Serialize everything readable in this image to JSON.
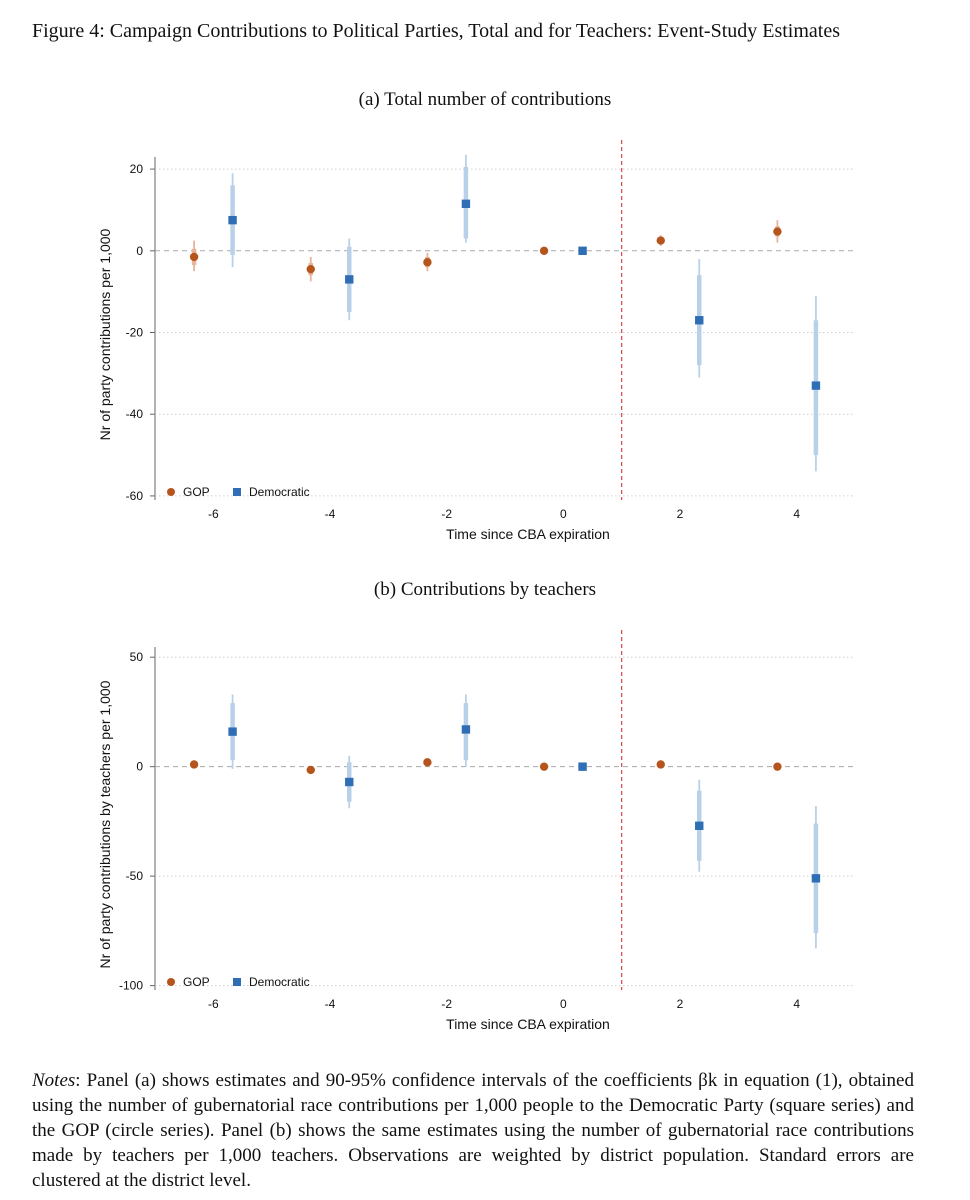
{
  "figure_title": "Figure 4: Campaign Contributions to Political Parties, Total and for Teachers: Event-Study Estimates",
  "notes": {
    "lead": "Notes",
    "text": ": Panel (a) shows estimates and 90-95% confidence intervals of the coefficients βk in equation (1), obtained using the number of gubernatorial race contributions per 1,000 people to the Democratic Party (square series) and the GOP (circle series). Panel (b) shows the same estimates using the number of gubernatorial race contributions made by teachers per 1,000 teachers. Observations are weighted by district population. Standard errors are clustered at the district level."
  },
  "colors": {
    "gop": "#b5551d",
    "gop_ci": "#e8b49a",
    "dem": "#2f6db5",
    "dem_ci": "#b9d1e8",
    "event_line": "#d9454a",
    "grid": "#cfcfcf"
  },
  "chart_data": [
    {
      "type": "scatter",
      "panel": "a",
      "title": "(a) Total number of contributions",
      "xlabel": "Time since CBA expiration",
      "ylabel": "Nr of party contributions per 1,000",
      "xlim": [
        -7,
        5
      ],
      "ylim": [
        -61,
        21
      ],
      "xticks": [
        -6,
        -4,
        -2,
        0,
        2,
        4
      ],
      "yticks": [
        20,
        0,
        -20,
        -40,
        -60
      ],
      "event_line_x": 1,
      "legend_position": "bottom-left",
      "grid": true,
      "series": [
        {
          "name": "GOP",
          "marker": "circle",
          "points": [
            {
              "x": -6,
              "y": -1.5,
              "ci90": [
                -3.5,
                0.5
              ],
              "ci95": [
                -5,
                2.5
              ]
            },
            {
              "x": -4,
              "y": -4.5,
              "ci90": [
                -6,
                -3
              ],
              "ci95": [
                -7.5,
                -1.5
              ]
            },
            {
              "x": -2,
              "y": -2.8,
              "ci90": [
                -4,
                -1.5
              ],
              "ci95": [
                -5,
                -0.5
              ]
            },
            {
              "x": 0,
              "y": 0,
              "ci90": [
                0,
                0
              ],
              "ci95": [
                0,
                0
              ]
            },
            {
              "x": 2,
              "y": 2.5,
              "ci90": [
                1.8,
                3.2
              ],
              "ci95": [
                1.2,
                3.8
              ]
            },
            {
              "x": 4,
              "y": 4.7,
              "ci90": [
                3.5,
                6
              ],
              "ci95": [
                2,
                7.5
              ]
            }
          ]
        },
        {
          "name": "Democratic",
          "marker": "square",
          "points": [
            {
              "x": -6,
              "y": 7.5,
              "ci90": [
                -1,
                16
              ],
              "ci95": [
                -4,
                19
              ]
            },
            {
              "x": -4,
              "y": -7,
              "ci90": [
                -15,
                1
              ],
              "ci95": [
                -17,
                3
              ]
            },
            {
              "x": -2,
              "y": 11.5,
              "ci90": [
                3,
                20.5
              ],
              "ci95": [
                2,
                23.5
              ]
            },
            {
              "x": 0,
              "y": 0,
              "ci90": [
                0,
                0
              ],
              "ci95": [
                0,
                0
              ]
            },
            {
              "x": 2,
              "y": -17,
              "ci90": [
                -28,
                -6
              ],
              "ci95": [
                -31,
                -2
              ]
            },
            {
              "x": 4,
              "y": -33,
              "ci90": [
                -50,
                -17
              ],
              "ci95": [
                -54,
                -11
              ]
            }
          ]
        }
      ]
    },
    {
      "type": "scatter",
      "panel": "b",
      "title": "(b) Contributions by teachers",
      "xlabel": "Time since CBA expiration",
      "ylabel": "Nr of party contributions by teachers per 1,000",
      "xlim": [
        -7,
        5
      ],
      "ylim": [
        -102,
        51
      ],
      "xticks": [
        -6,
        -4,
        -2,
        0,
        2,
        4
      ],
      "yticks": [
        50,
        0,
        -50,
        -100
      ],
      "event_line_x": 1,
      "legend_position": "bottom-left",
      "grid": true,
      "series": [
        {
          "name": "GOP",
          "marker": "circle",
          "points": [
            {
              "x": -6,
              "y": 1,
              "ci90": [
                0.2,
                1.8
              ],
              "ci95": [
                -0.5,
                2.5
              ]
            },
            {
              "x": -4,
              "y": -1.5,
              "ci90": [
                -2.3,
                -0.7
              ],
              "ci95": [
                -3,
                0
              ]
            },
            {
              "x": -2,
              "y": 2,
              "ci90": [
                1.2,
                2.8
              ],
              "ci95": [
                0.5,
                3.5
              ]
            },
            {
              "x": 0,
              "y": 0,
              "ci90": [
                0,
                0
              ],
              "ci95": [
                0,
                0
              ]
            },
            {
              "x": 2,
              "y": 1,
              "ci90": [
                0.3,
                1.7
              ],
              "ci95": [
                -0.5,
                2.5
              ]
            },
            {
              "x": 4,
              "y": 0,
              "ci90": [
                -0.8,
                0.8
              ],
              "ci95": [
                -1.5,
                1.5
              ]
            }
          ]
        },
        {
          "name": "Democratic",
          "marker": "square",
          "points": [
            {
              "x": -6,
              "y": 16,
              "ci90": [
                3,
                29
              ],
              "ci95": [
                -1,
                33
              ]
            },
            {
              "x": -4,
              "y": -7,
              "ci90": [
                -16,
                2
              ],
              "ci95": [
                -19,
                5
              ]
            },
            {
              "x": -2,
              "y": 17,
              "ci90": [
                3,
                29
              ],
              "ci95": [
                0,
                33
              ]
            },
            {
              "x": 0,
              "y": 0,
              "ci90": [
                0,
                0
              ],
              "ci95": [
                0,
                0
              ]
            },
            {
              "x": 2,
              "y": -27,
              "ci90": [
                -43,
                -11
              ],
              "ci95": [
                -48,
                -6
              ]
            },
            {
              "x": 4,
              "y": -51,
              "ci90": [
                -76,
                -26
              ],
              "ci95": [
                -83,
                -18
              ]
            }
          ]
        }
      ]
    }
  ]
}
